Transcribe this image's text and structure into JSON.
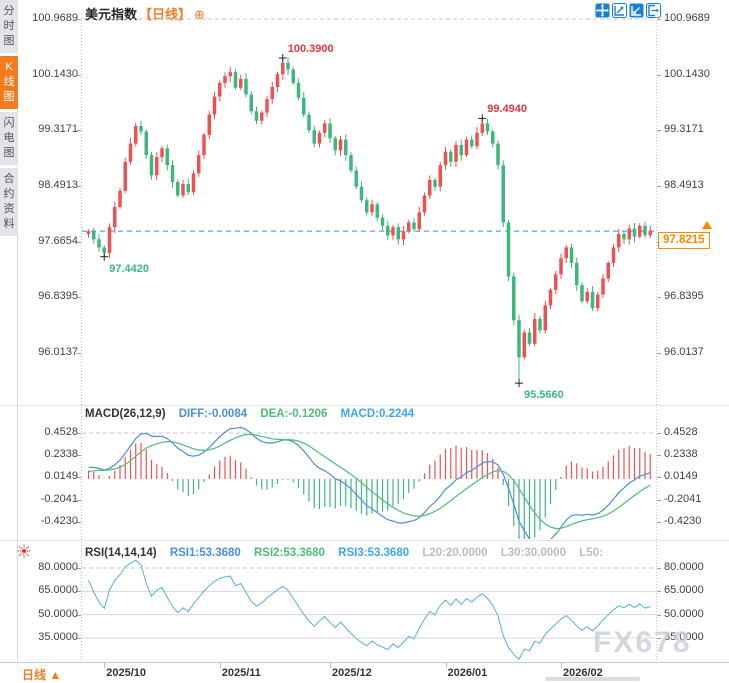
{
  "header": {
    "title": "美元指数",
    "period": "【日线】",
    "add_icon": "⊕"
  },
  "sidebar": {
    "items": [
      {
        "label": "分时图",
        "active": false
      },
      {
        "label": "K线图",
        "active": true
      },
      {
        "label": "闪电图",
        "active": false
      },
      {
        "label": "合约资料",
        "active": false
      }
    ]
  },
  "toolbar": {
    "icons": [
      {
        "name": "pan-crosshair",
        "active": true
      },
      {
        "name": "scale-expand",
        "active": false
      },
      {
        "name": "scale-compress",
        "active": true
      },
      {
        "name": "jump-to-latest",
        "active": false
      }
    ]
  },
  "colors": {
    "up": "#ef5051",
    "down": "#3cb77e",
    "accent": "#f57b20",
    "diff_line": "#4a8fd9",
    "dea_line": "#4fba7c",
    "rsi_line": "#54b0d8",
    "current_line": "#2e8de0",
    "price_tag": "#ff8a00",
    "anno_high": "#e8353e",
    "anno_low": "#3cb77e"
  },
  "macd": {
    "title": "MACD(26,12,9)",
    "diff": "DIFF:-0.0084",
    "dea": "DEA:-0.1206",
    "macd": "MACD:0.2244"
  },
  "rsi": {
    "title": "RSI(14,14,14)",
    "rsi1": "RSI1:53.3680",
    "rsi2": "RSI2:53.3680",
    "rsi3": "RSI3:53.3680",
    "l20": "L20:20.0000",
    "l30": "L30:30.0000",
    "l50": "L50:"
  },
  "bottom": {
    "period_label": "日线",
    "period_arrow": "▲"
  },
  "watermark": "FX678",
  "main_chart": {
    "current_price": "97.8215"
  },
  "chart_data": [
    {
      "type": "candlestick",
      "title": "美元指数 日线",
      "y_tick_labels": [
        "100.9689",
        "100.1430",
        "99.3171",
        "98.4913",
        "97.6654",
        "96.8395",
        "96.0137"
      ],
      "y_tick_values": [
        100.9689,
        100.143,
        99.3171,
        98.4913,
        97.6654,
        96.8395,
        96.0137
      ],
      "ylim": [
        95.5,
        101.0
      ],
      "x_labels": [
        {
          "label": "2025/10",
          "index": 3
        },
        {
          "label": "2025/11",
          "index": 25
        },
        {
          "label": "2025/12",
          "index": 46
        },
        {
          "label": "2026/01",
          "index": 68
        },
        {
          "label": "2026/02",
          "index": 90
        }
      ],
      "current_price": 97.8215,
      "preroll": [
        97.3,
        97.25,
        97.35,
        97.28,
        97.4,
        97.35,
        97.45,
        97.5,
        97.42,
        97.55,
        97.6,
        97.52,
        97.65,
        97.72,
        97.78
      ],
      "closes": [
        97.82,
        97.7,
        97.58,
        97.5,
        97.88,
        98.18,
        98.42,
        98.85,
        99.12,
        99.38,
        99.3,
        98.95,
        98.65,
        98.92,
        99.05,
        98.8,
        98.55,
        98.35,
        98.52,
        98.4,
        98.68,
        98.95,
        99.25,
        99.55,
        99.82,
        100.02,
        100.12,
        100.18,
        99.95,
        100.08,
        99.85,
        99.6,
        99.46,
        99.58,
        99.78,
        99.96,
        100.15,
        100.32,
        100.22,
        100.02,
        99.8,
        99.55,
        99.32,
        99.12,
        99.28,
        99.42,
        99.2,
        99.02,
        99.18,
        98.95,
        98.72,
        98.48,
        98.28,
        98.1,
        98.22,
        98.02,
        97.9,
        97.76,
        97.88,
        97.7,
        97.82,
        97.95,
        97.85,
        98.1,
        98.35,
        98.58,
        98.48,
        98.8,
        99.0,
        98.85,
        99.1,
        98.95,
        99.18,
        99.08,
        99.28,
        99.42,
        99.3,
        99.12,
        98.8,
        97.95,
        97.15,
        96.5,
        95.95,
        96.32,
        96.15,
        96.52,
        96.35,
        96.72,
        96.95,
        97.18,
        97.42,
        97.58,
        97.35,
        97.02,
        96.78,
        96.92,
        96.68,
        96.88,
        97.12,
        97.35,
        97.58,
        97.78,
        97.7,
        97.86,
        97.74,
        97.9,
        97.76,
        97.8215
      ],
      "wick_overrides": {
        "3": {
          "low": 97.442
        },
        "10": {
          "high": 99.46
        },
        "37": {
          "high": 100.39
        },
        "75": {
          "high": 99.494
        },
        "82": {
          "low": 95.566
        }
      },
      "annotations": [
        {
          "text": "100.3900",
          "price": 100.39,
          "index": 37,
          "kind": "high"
        },
        {
          "text": "99.4940",
          "price": 99.494,
          "index": 75,
          "kind": "high"
        },
        {
          "text": "97.4420",
          "price": 97.442,
          "index": 3,
          "kind": "low"
        },
        {
          "text": "95.5660",
          "price": 95.566,
          "index": 82,
          "kind": "low"
        }
      ]
    },
    {
      "type": "macd",
      "name": "MACD(26,12,9)",
      "latest": {
        "diff": -0.0084,
        "dea": -0.1206,
        "macd": 0.2244
      },
      "y_tick_labels": [
        "0.4528",
        "0.2338",
        "0.0149",
        "-0.2041",
        "-0.4230"
      ],
      "y_tick_values": [
        0.4528,
        0.2338,
        0.0149,
        -0.2041,
        -0.423
      ]
    },
    {
      "type": "rsi",
      "name": "RSI(14,14,14)",
      "latest": {
        "rsi1": 53.368,
        "rsi2": 53.368,
        "rsi3": 53.368
      },
      "levels": {
        "l20": 20,
        "l30": 30
      },
      "y_tick_labels": [
        "80.0000",
        "65.0000",
        "50.0000",
        "35.0000"
      ],
      "y_tick_values": [
        80,
        65,
        50,
        35
      ]
    }
  ]
}
